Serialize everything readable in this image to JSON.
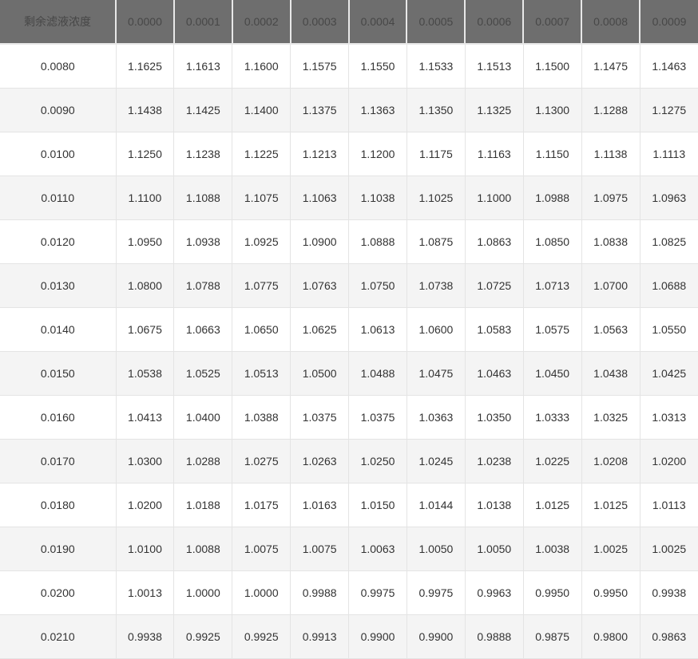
{
  "colors": {
    "header_bg": "#6e6e6e",
    "header_text": "#474747",
    "cell_text": "#333333",
    "row_alt_bg": "#f4f4f4",
    "row_bg": "#ffffff",
    "border": "#e4e4e4"
  },
  "chart_data": {
    "type": "table",
    "title": "",
    "corner_label": "剩余滤液浓度",
    "column_headers": [
      "0.0000",
      "0.0001",
      "0.0002",
      "0.0003",
      "0.0004",
      "0.0005",
      "0.0006",
      "0.0007",
      "0.0008",
      "0.0009"
    ],
    "row_labels": [
      "0.0080",
      "0.0090",
      "0.0100",
      "0.0110",
      "0.0120",
      "0.0130",
      "0.0140",
      "0.0150",
      "0.0160",
      "0.0170",
      "0.0180",
      "0.0190",
      "0.0200",
      "0.0210"
    ],
    "values": [
      [
        "1.1625",
        "1.1613",
        "1.1600",
        "1.1575",
        "1.1550",
        "1.1533",
        "1.1513",
        "1.1500",
        "1.1475",
        "1.1463"
      ],
      [
        "1.1438",
        "1.1425",
        "1.1400",
        "1.1375",
        "1.1363",
        "1.1350",
        "1.1325",
        "1.1300",
        "1.1288",
        "1.1275"
      ],
      [
        "1.1250",
        "1.1238",
        "1.1225",
        "1.1213",
        "1.1200",
        "1.1175",
        "1.1163",
        "1.1150",
        "1.1138",
        "1.1113"
      ],
      [
        "1.1100",
        "1.1088",
        "1.1075",
        "1.1063",
        "1.1038",
        "1.1025",
        "1.1000",
        "1.0988",
        "1.0975",
        "1.0963"
      ],
      [
        "1.0950",
        "1.0938",
        "1.0925",
        "1.0900",
        "1.0888",
        "1.0875",
        "1.0863",
        "1.0850",
        "1.0838",
        "1.0825"
      ],
      [
        "1.0800",
        "1.0788",
        "1.0775",
        "1.0763",
        "1.0750",
        "1.0738",
        "1.0725",
        "1.0713",
        "1.0700",
        "1.0688"
      ],
      [
        "1.0675",
        "1.0663",
        "1.0650",
        "1.0625",
        "1.0613",
        "1.0600",
        "1.0583",
        "1.0575",
        "1.0563",
        "1.0550"
      ],
      [
        "1.0538",
        "1.0525",
        "1.0513",
        "1.0500",
        "1.0488",
        "1.0475",
        "1.0463",
        "1.0450",
        "1.0438",
        "1.0425"
      ],
      [
        "1.0413",
        "1.0400",
        "1.0388",
        "1.0375",
        "1.0375",
        "1.0363",
        "1.0350",
        "1.0333",
        "1.0325",
        "1.0313"
      ],
      [
        "1.0300",
        "1.0288",
        "1.0275",
        "1.0263",
        "1.0250",
        "1.0245",
        "1.0238",
        "1.0225",
        "1.0208",
        "1.0200"
      ],
      [
        "1.0200",
        "1.0188",
        "1.0175",
        "1.0163",
        "1.0150",
        "1.0144",
        "1.0138",
        "1.0125",
        "1.0125",
        "1.0113"
      ],
      [
        "1.0100",
        "1.0088",
        "1.0075",
        "1.0075",
        "1.0063",
        "1.0050",
        "1.0050",
        "1.0038",
        "1.0025",
        "1.0025"
      ],
      [
        "1.0013",
        "1.0000",
        "1.0000",
        "0.9988",
        "0.9975",
        "0.9975",
        "0.9963",
        "0.9950",
        "0.9950",
        "0.9938"
      ],
      [
        "0.9938",
        "0.9925",
        "0.9925",
        "0.9913",
        "0.9900",
        "0.9900",
        "0.9888",
        "0.9875",
        "0.9800",
        "0.9863"
      ]
    ]
  }
}
